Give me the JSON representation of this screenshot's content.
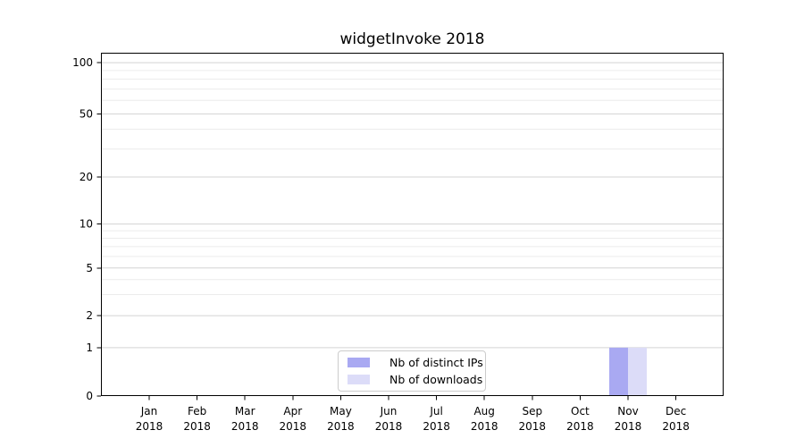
{
  "chart_data": {
    "type": "bar",
    "title": "widgetInvoke 2018",
    "year_label": "2018",
    "categories": [
      "Jan",
      "Feb",
      "Mar",
      "Apr",
      "May",
      "Jun",
      "Jul",
      "Aug",
      "Sep",
      "Oct",
      "Nov",
      "Dec"
    ],
    "series": [
      {
        "name": "Nb of distinct IPs",
        "color": "#a9a9f2",
        "values": [
          0,
          0,
          0,
          0,
          0,
          0,
          0,
          0,
          0,
          0,
          1,
          0
        ]
      },
      {
        "name": "Nb of downloads",
        "color": "#dcdcf8",
        "values": [
          0,
          0,
          0,
          0,
          0,
          0,
          0,
          0,
          0,
          0,
          1,
          0
        ]
      }
    ],
    "y_axis": {
      "scale": "symlog",
      "ticks": [
        0,
        1,
        2,
        5,
        10,
        20,
        50,
        100
      ],
      "minor_gridlines": [
        3,
        4,
        6,
        7,
        8,
        9,
        30,
        40,
        60,
        70,
        80,
        90
      ],
      "ylim": [
        0,
        117
      ]
    },
    "legend": {
      "position": "lower center"
    },
    "grid": "horizontal",
    "colors": {
      "major_grid": "#d3d3d3",
      "minor_grid": "#ececec",
      "axis": "#000000",
      "text": "#000000",
      "background": "#ffffff"
    }
  }
}
